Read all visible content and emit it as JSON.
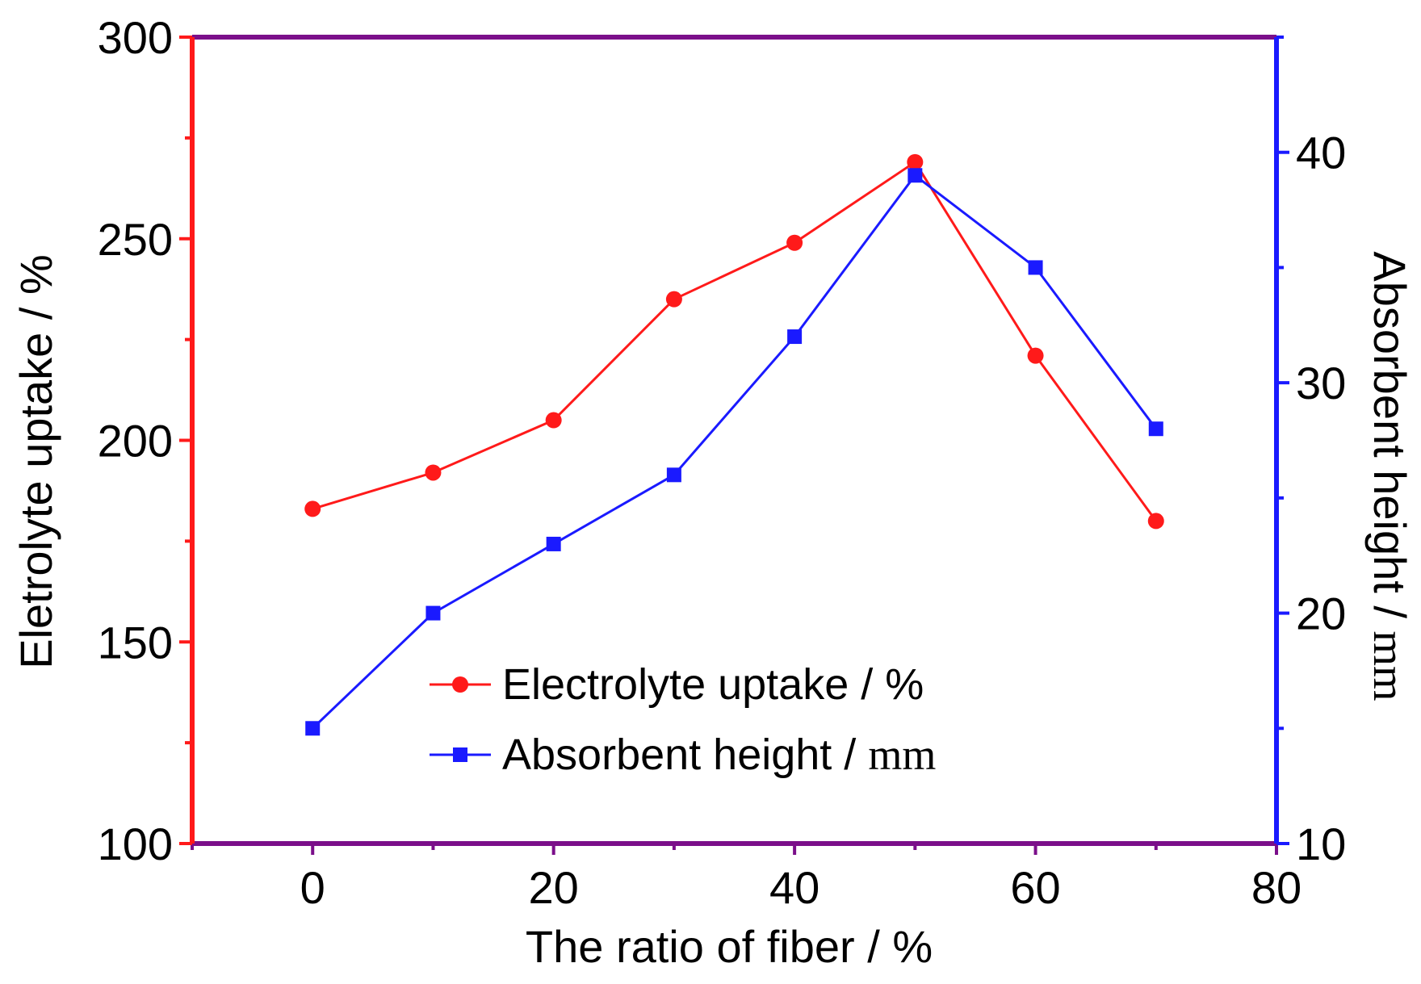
{
  "chart_data": {
    "type": "line",
    "title": "",
    "xlabel": "The ratio of fiber / %",
    "ylabel_left": "Eletrolyte uptake / %",
    "ylabel_right_text": "Absorbent height / ",
    "ylabel_right_unit": "mm",
    "xlim": [
      -10,
      80
    ],
    "ylim_left": [
      100,
      300
    ],
    "ylim_right": [
      10,
      45
    ],
    "x_ticks": [
      0,
      20,
      40,
      60,
      80
    ],
    "x_minor_ticks": [
      -10,
      10,
      30,
      50,
      70
    ],
    "y_left_ticks": [
      100,
      150,
      200,
      250,
      300
    ],
    "y_left_minor_ticks": [
      125,
      175,
      225,
      275
    ],
    "y_right_ticks": [
      10,
      20,
      30,
      40
    ],
    "y_right_minor_ticks": [
      15,
      25,
      35,
      45
    ],
    "x_tick_labels": [
      "0",
      "20",
      "40",
      "60",
      "80"
    ],
    "y_left_tick_labels": [
      "100",
      "150",
      "200",
      "250",
      "300"
    ],
    "y_right_tick_labels": [
      "10",
      "20",
      "30",
      "40"
    ],
    "colors": {
      "left_axis": "#ff1a1a",
      "right_axis": "#1a1aff",
      "frame": "#7b0f8a",
      "series_uptake": "#ff1a1a",
      "series_height": "#1a1aff"
    },
    "series": [
      {
        "name": "Electrolyte uptake / %",
        "axis": "left",
        "marker": "circle",
        "x": [
          0,
          10,
          20,
          30,
          40,
          50,
          60,
          70
        ],
        "values": [
          183,
          192,
          205,
          235,
          249,
          269,
          221,
          180
        ]
      },
      {
        "name": "Absorbent height / mm",
        "axis": "right",
        "marker": "square",
        "x": [
          0,
          10,
          20,
          30,
          40,
          50,
          60,
          70
        ],
        "values": [
          15,
          20,
          23,
          26,
          32,
          39,
          35,
          28
        ]
      }
    ],
    "legend": {
      "position": "lower-center",
      "entries": [
        {
          "text": "Electrolyte uptake / %",
          "unit": ""
        },
        {
          "text": "Absorbent height / ",
          "unit": "mm"
        }
      ]
    }
  }
}
